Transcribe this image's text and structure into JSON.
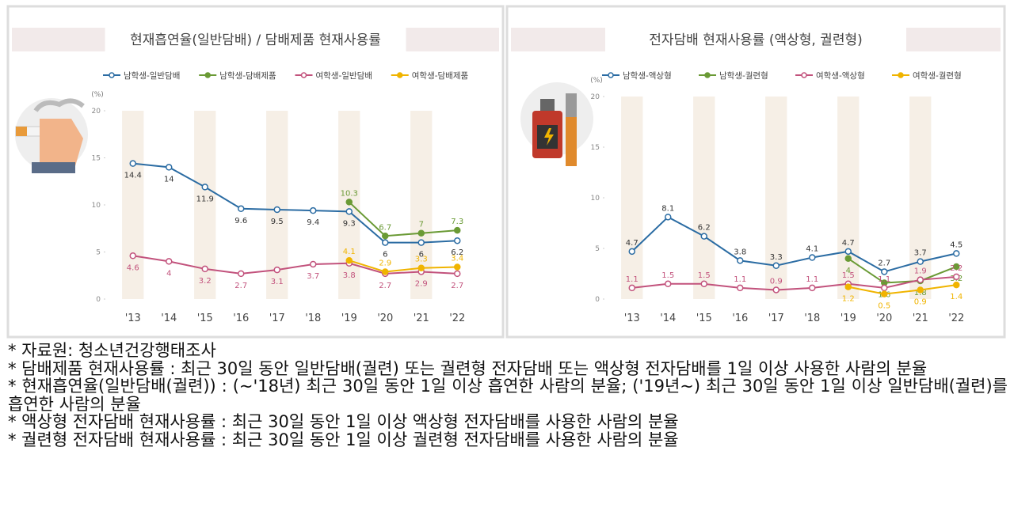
{
  "chart_data": [
    {
      "type": "line",
      "title": "현재흡연율(일반담배) / 담배제품 현재사용률",
      "ylabel": "(%)",
      "categories": [
        "'13",
        "'14",
        "'15",
        "'16",
        "'17",
        "'18",
        "'19",
        "'20",
        "'21",
        "'22"
      ],
      "ylim": [
        0,
        20
      ],
      "yticks": [
        0,
        5,
        10,
        15,
        20
      ],
      "legend": "top",
      "series": [
        {
          "name": "남학생-일반담배",
          "color": "#2b6ca3",
          "values": [
            14.4,
            14.0,
            11.9,
            9.6,
            9.5,
            9.4,
            9.3,
            6.0,
            6.0,
            6.2
          ]
        },
        {
          "name": "남학생-담배제품",
          "color": "#6a9a35",
          "values": [
            null,
            null,
            null,
            null,
            null,
            null,
            10.3,
            6.7,
            7.0,
            7.3
          ]
        },
        {
          "name": "여학생-일반담배",
          "color": "#c2527c",
          "values": [
            4.6,
            4.0,
            3.2,
            2.7,
            3.1,
            3.7,
            3.8,
            2.7,
            2.9,
            2.7
          ]
        },
        {
          "name": "여학생-담배제품",
          "color": "#f0b400",
          "values": [
            null,
            null,
            null,
            null,
            null,
            null,
            4.1,
            2.9,
            3.3,
            3.4
          ]
        }
      ]
    },
    {
      "type": "line",
      "title": "전자담배 현재사용률 (액상형, 궐련형)",
      "ylabel": "(%)",
      "categories": [
        "'13",
        "'14",
        "'15",
        "'16",
        "'17",
        "'18",
        "'19",
        "'20",
        "'21",
        "'22"
      ],
      "ylim": [
        0,
        20
      ],
      "yticks": [
        0,
        5,
        10,
        15,
        20
      ],
      "legend": "top",
      "series": [
        {
          "name": "남학생-액상형",
          "color": "#2b6ca3",
          "values": [
            4.7,
            8.1,
            6.2,
            3.8,
            3.3,
            4.1,
            4.7,
            2.7,
            3.7,
            4.5
          ]
        },
        {
          "name": "남학생-궐련형",
          "color": "#6a9a35",
          "values": [
            null,
            null,
            null,
            null,
            null,
            null,
            4.0,
            1.6,
            1.8,
            3.2
          ]
        },
        {
          "name": "여학생-액상형",
          "color": "#c2527c",
          "values": [
            1.1,
            1.5,
            1.5,
            1.1,
            0.9,
            1.1,
            1.5,
            1.1,
            1.9,
            2.2
          ]
        },
        {
          "name": "여학생-궐련형",
          "color": "#f0b400",
          "values": [
            null,
            null,
            null,
            null,
            null,
            null,
            1.2,
            0.5,
            0.9,
            1.4
          ]
        }
      ]
    }
  ],
  "notes": [
    "* 자료원: 청소년건강행태조사",
    "* 담배제품 현재사용률 : 최근 30일 동안 일반담배(궐련) 또는 궐련형 전자담배 또는 액상형 전자담배를 1일 이상 사용한 사람의 분율",
    "* 현재흡연율(일반담배(궐련)) : (~'18년) 최근 30일 동안 1일 이상 흡연한 사람의 분율; ('19년~) 최근 30일 동안 1일 이상 일반담배(궐련)를 흡연한 사람의 분율",
    "* 액상형 전자담배 현재사용률 : 최근 30일 동안 1일 이상 액상형 전자담배를 사용한 사람의 분율",
    "* 궐련형 전자담배 현재사용률 : 최근 30일 동안 1일 이상 궐련형 전자담배를 사용한 사람의 분율"
  ]
}
